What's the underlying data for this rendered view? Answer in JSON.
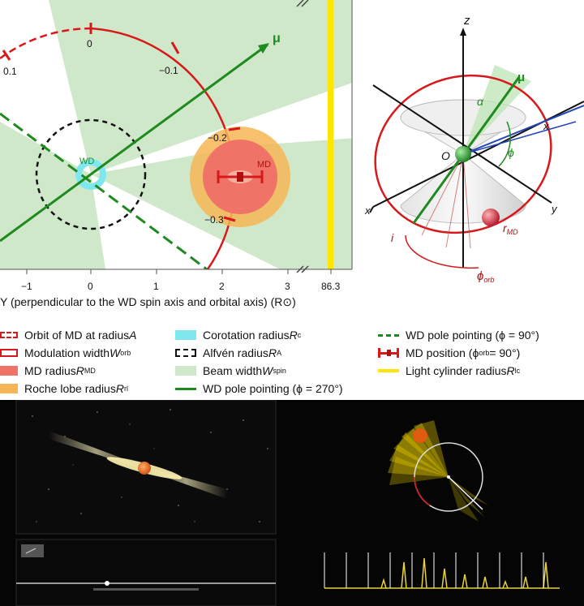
{
  "colors": {
    "orbit_red": "#d7191c",
    "beam_green": "#cfe8c9",
    "pole_green": "#1f8a1f",
    "corotation_cyan": "#7fe8ee",
    "md_red": "#f07367",
    "roche_orange": "#f6b655",
    "light_cylinder": "#ffe600"
  },
  "plot": {
    "orbit_ticks": [
      "0.1",
      "0",
      "−0.1",
      "−0.2",
      "−0.3"
    ],
    "mu_label": "μ",
    "wd_label": "WD",
    "md_label": "MD",
    "x_ticks": [
      "−1",
      "0",
      "1",
      "2",
      "3",
      "86.3"
    ],
    "x_axis_label": "Y (perpendicular to the WD spin axis and orbital axis) (R⊙)"
  },
  "diagram3d": {
    "z_label": "z",
    "x_label_right": "x",
    "x_label_left": "x",
    "y_label": "y",
    "origin_label": "O",
    "alpha_label": "α",
    "phi_label": "ϕ",
    "mu_label": "μ",
    "i_label": "i",
    "r_md_label": "r",
    "r_md_sub": "MD",
    "phi_orb_label": "ϕ",
    "phi_orb_sub": "orb"
  },
  "legend": {
    "items": [
      {
        "text": "Orbit of MD at radius ",
        "math": "A",
        "sub": ""
      },
      {
        "text": "Modulation width ",
        "math": "W",
        "sub": "orb"
      },
      {
        "text": "MD radius ",
        "math": "R",
        "sub": "MD"
      },
      {
        "text": "Roche lobe radius ",
        "math": "R",
        "sub": "rl"
      },
      {
        "text": "Corotation radius ",
        "math": "R",
        "sub": "c"
      },
      {
        "text": "Alfvén radius ",
        "math": "R",
        "sub": "A"
      },
      {
        "text": "Beam width ",
        "math": "W",
        "sub": "spin"
      },
      {
        "text": "WD pole pointing (ϕ = 270°)",
        "math": "",
        "sub": ""
      },
      {
        "text": "WD pole pointing (ϕ = 90°)",
        "math": "",
        "sub": ""
      },
      {
        "text": "MD position (ϕ",
        "math": "",
        "sub": "orb",
        "tail": " = 90°)"
      },
      {
        "text": "Light cylinder radius ",
        "math": "R",
        "sub": "lc"
      }
    ]
  }
}
